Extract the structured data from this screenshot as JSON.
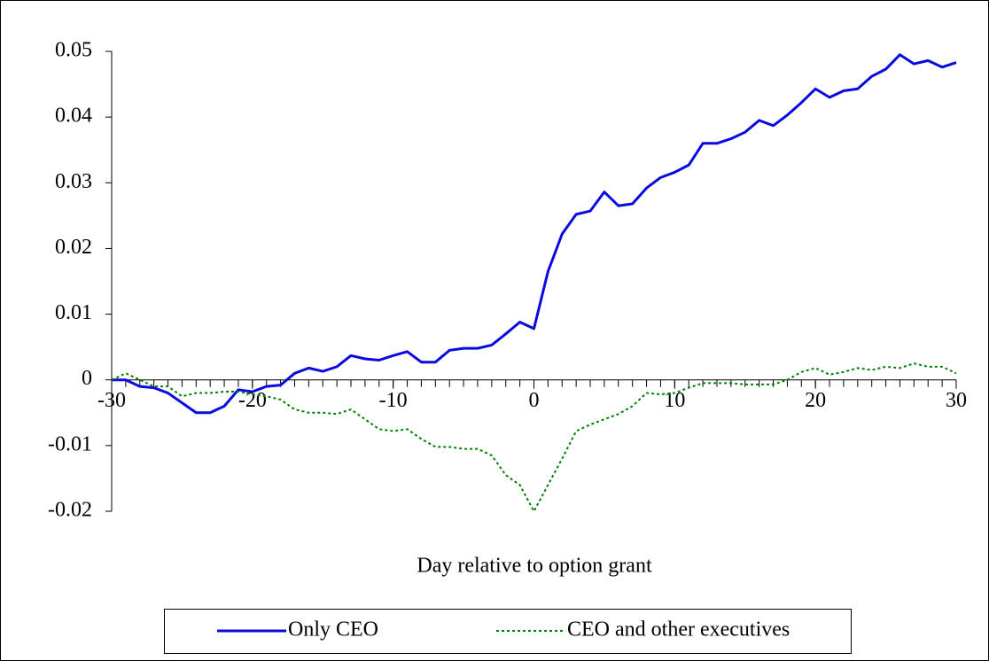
{
  "chart_data": {
    "type": "line",
    "xlabel": "Day relative to option grant",
    "x": [
      -30,
      -29,
      -28,
      -27,
      -26,
      -25,
      -24,
      -23,
      -22,
      -21,
      -20,
      -19,
      -18,
      -17,
      -16,
      -15,
      -14,
      -13,
      -12,
      -11,
      -10,
      -9,
      -8,
      -7,
      -6,
      -5,
      -4,
      -3,
      -2,
      -1,
      0,
      1,
      2,
      3,
      4,
      5,
      6,
      7,
      8,
      9,
      10,
      11,
      12,
      13,
      14,
      15,
      16,
      17,
      18,
      19,
      20,
      21,
      22,
      23,
      24,
      25,
      26,
      27,
      28,
      29,
      30
    ],
    "series": [
      {
        "name": "Only CEO",
        "color": "#0a0ae0",
        "style": "solid",
        "values": [
          0,
          0,
          -0.001,
          -0.0012,
          -0.002,
          -0.0035,
          -0.005,
          -0.005,
          -0.004,
          -0.0015,
          -0.0018,
          -0.001,
          -0.0008,
          0.001,
          0.0018,
          0.0013,
          0.002,
          0.0037,
          0.0032,
          0.003,
          0.0037,
          0.0043,
          0.0027,
          0.0027,
          0.0045,
          0.0048,
          0.0048,
          0.0053,
          0.007,
          0.0088,
          0.0078,
          0.0165,
          0.0222,
          0.0252,
          0.0257,
          0.0286,
          0.0265,
          0.0268,
          0.0292,
          0.0308,
          0.0316,
          0.0327,
          0.036,
          0.036,
          0.0367,
          0.0377,
          0.0395,
          0.0387,
          0.0403,
          0.0422,
          0.0443,
          0.043,
          0.044,
          0.0443,
          0.0462,
          0.0473,
          0.0495,
          0.0481,
          0.0486,
          0.0476,
          0.0483
        ]
      },
      {
        "name": "CEO and other executives",
        "color": "#008000",
        "style": "dotted",
        "values": [
          0,
          0.001,
          0,
          -0.001,
          -0.001,
          -0.0025,
          -0.002,
          -0.002,
          -0.0018,
          -0.0018,
          -0.0022,
          -0.0025,
          -0.003,
          -0.0045,
          -0.005,
          -0.005,
          -0.0052,
          -0.0045,
          -0.006,
          -0.0075,
          -0.0078,
          -0.0075,
          -0.009,
          -0.0102,
          -0.0102,
          -0.0105,
          -0.0105,
          -0.0115,
          -0.0145,
          -0.016,
          -0.02,
          -0.016,
          -0.012,
          -0.0078,
          -0.0068,
          -0.006,
          -0.0052,
          -0.004,
          -0.002,
          -0.0022,
          -0.002,
          -0.0012,
          -0.0005,
          -0.0005,
          -0.0005,
          -0.0007,
          -0.0007,
          -0.0007,
          0,
          0.0012,
          0.0018,
          0.0008,
          0.0012,
          0.0018,
          0.0015,
          0.002,
          0.0018,
          0.0025,
          0.002,
          0.002,
          0.001
        ]
      }
    ],
    "xlim": [
      -30,
      30
    ],
    "xticks": [
      -30,
      -20,
      -10,
      0,
      10,
      20,
      30
    ],
    "ylim": [
      -0.02,
      0.05
    ],
    "yticks": [
      0.05,
      0.04,
      0.03,
      0.02,
      0.01,
      0,
      -0.01,
      -0.02
    ],
    "legend": "bottom"
  }
}
